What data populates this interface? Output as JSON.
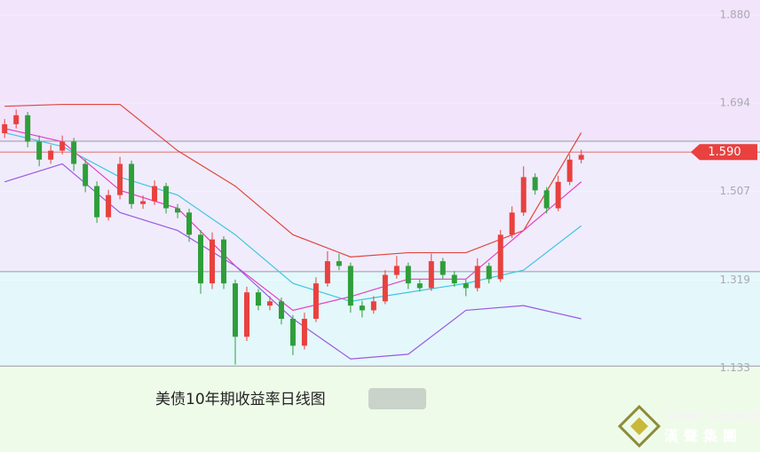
{
  "chart_data": {
    "type": "candlestick",
    "title": "美债10年期收益率日线图",
    "brand": {
      "name_en": "SINO SOUND",
      "name_zh": "漢聲集團"
    },
    "up_color": "#e8413f",
    "down_color": "#2f9e3a",
    "xlim": [
      -0.4,
      65.5
    ],
    "ylim": [
      0.955,
      1.912
    ],
    "yticks": [
      {
        "value": 1.88,
        "label": "1.880"
      },
      {
        "value": 1.694,
        "label": "1.694"
      },
      {
        "value": 1.507,
        "label": "1.507"
      },
      {
        "value": 1.319,
        "label": "1.319"
      },
      {
        "value": 1.133,
        "label": "1.133"
      }
    ],
    "reference_lines": [
      1.613,
      1.337,
      1.137
    ],
    "current_price": {
      "value": 1.59,
      "label": "1.590"
    },
    "x": [
      0,
      1,
      2,
      3,
      4,
      5,
      6,
      7,
      8,
      9,
      10,
      11,
      12,
      13,
      14,
      15,
      16,
      17,
      18,
      19,
      20,
      21,
      22,
      23,
      24,
      25,
      26,
      27,
      28,
      29,
      30,
      31,
      32,
      33,
      34,
      35,
      36,
      37,
      38,
      39,
      40,
      41,
      42,
      43,
      44,
      45,
      46,
      47,
      48,
      49,
      50
    ],
    "open": [
      1.63,
      1.649,
      1.668,
      1.612,
      1.574,
      1.593,
      1.612,
      1.565,
      1.518,
      1.452,
      1.499,
      1.565,
      1.48,
      1.486,
      1.518,
      1.471,
      1.462,
      1.415,
      1.312,
      1.405,
      1.312,
      1.199,
      1.293,
      1.265,
      1.274,
      1.237,
      1.18,
      1.237,
      1.312,
      1.359,
      1.349,
      1.265,
      1.255,
      1.274,
      1.33,
      1.349,
      1.312,
      1.302,
      1.359,
      1.33,
      1.312,
      1.302,
      1.349,
      1.321,
      1.415,
      1.462,
      1.537,
      1.509,
      1.471,
      1.527,
      1.574
    ],
    "high": [
      1.66,
      1.68,
      1.675,
      1.625,
      1.605,
      1.625,
      1.62,
      1.575,
      1.528,
      1.51,
      1.58,
      1.572,
      1.498,
      1.53,
      1.525,
      1.48,
      1.47,
      1.425,
      1.42,
      1.412,
      1.32,
      1.305,
      1.3,
      1.285,
      1.282,
      1.245,
      1.25,
      1.325,
      1.38,
      1.375,
      1.356,
      1.275,
      1.285,
      1.34,
      1.37,
      1.356,
      1.32,
      1.375,
      1.366,
      1.338,
      1.32,
      1.365,
      1.356,
      1.425,
      1.475,
      1.56,
      1.545,
      1.516,
      1.54,
      1.585,
      1.595
    ],
    "low": [
      1.62,
      1.64,
      1.6,
      1.56,
      1.565,
      1.585,
      1.55,
      1.505,
      1.44,
      1.445,
      1.49,
      1.47,
      1.47,
      1.478,
      1.46,
      1.45,
      1.4,
      1.29,
      1.3,
      1.3,
      1.14,
      1.19,
      1.255,
      1.255,
      1.225,
      1.16,
      1.172,
      1.23,
      1.305,
      1.34,
      1.25,
      1.24,
      1.248,
      1.268,
      1.322,
      1.3,
      1.295,
      1.296,
      1.322,
      1.305,
      1.285,
      1.295,
      1.312,
      1.315,
      1.408,
      1.455,
      1.5,
      1.46,
      1.465,
      1.52,
      1.566
    ],
    "close": [
      1.649,
      1.668,
      1.612,
      1.574,
      1.593,
      1.612,
      1.565,
      1.518,
      1.452,
      1.499,
      1.565,
      1.48,
      1.486,
      1.518,
      1.471,
      1.462,
      1.415,
      1.312,
      1.405,
      1.312,
      1.199,
      1.293,
      1.265,
      1.274,
      1.237,
      1.18,
      1.237,
      1.312,
      1.359,
      1.349,
      1.265,
      1.255,
      1.274,
      1.33,
      1.349,
      1.312,
      1.302,
      1.359,
      1.33,
      1.312,
      1.302,
      1.349,
      1.321,
      1.415,
      1.462,
      1.537,
      1.509,
      1.471,
      1.527,
      1.574,
      1.584
    ],
    "lines": [
      {
        "color": "#e0463e",
        "x": [
          0,
          5,
          10,
          15,
          20,
          25,
          30,
          35,
          40,
          45,
          50
        ],
        "values": [
          1.687,
          1.691,
          1.691,
          1.593,
          1.518,
          1.415,
          1.368,
          1.377,
          1.377,
          1.424,
          1.631
        ]
      },
      {
        "color": "#3ec6e0",
        "x": [
          0,
          5,
          10,
          15,
          20,
          25,
          30,
          35,
          40,
          45,
          50
        ],
        "values": [
          1.631,
          1.602,
          1.537,
          1.499,
          1.415,
          1.312,
          1.274,
          1.293,
          1.312,
          1.34,
          1.434
        ]
      },
      {
        "color": "#e63fc0",
        "x": [
          0,
          5,
          10,
          15,
          20,
          25,
          30,
          35,
          40,
          45,
          50
        ],
        "values": [
          1.64,
          1.612,
          1.509,
          1.471,
          1.349,
          1.255,
          1.284,
          1.321,
          1.321,
          1.424,
          1.527
        ]
      },
      {
        "color": "#9b59e0",
        "x": [
          0,
          5,
          10,
          15,
          20,
          25,
          30,
          35,
          40,
          45,
          50
        ],
        "values": [
          1.527,
          1.565,
          1.462,
          1.424,
          1.349,
          1.237,
          1.152,
          1.162,
          1.255,
          1.265,
          1.237
        ]
      }
    ]
  }
}
